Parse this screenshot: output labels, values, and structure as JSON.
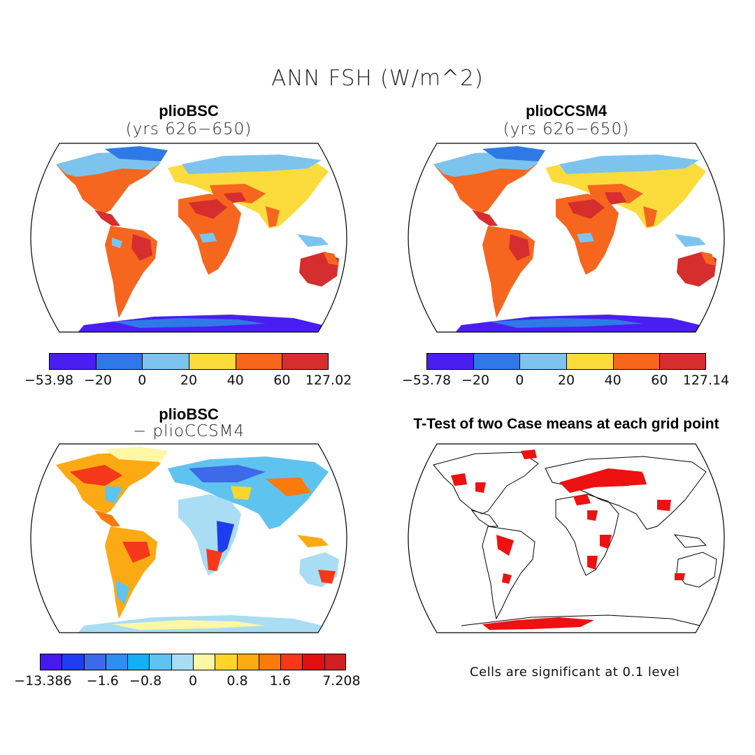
{
  "figure": {
    "title": "ANN FSH (W/m^2)"
  },
  "panels": [
    {
      "title": "plioBSC",
      "subtitle": "(yrs 626−650)",
      "colorbar": {
        "colors": [
          "#4a1ef0",
          "#2f79e6",
          "#7cc4ee",
          "#fbdc3c",
          "#f6661e",
          "#d62e2e"
        ],
        "labels": [
          "−53.98",
          "−20",
          "0",
          "20",
          "40",
          "60",
          "127.02"
        ]
      }
    },
    {
      "title": "plioCCSM4",
      "subtitle": "(yrs 626−650)",
      "colorbar": {
        "colors": [
          "#4a1ef0",
          "#2f79e6",
          "#7cc4ee",
          "#fbdc3c",
          "#f6661e",
          "#d62e2e"
        ],
        "labels": [
          "−53.78",
          "−20",
          "0",
          "20",
          "40",
          "60",
          "127.14"
        ]
      }
    },
    {
      "title": "plioBSC",
      "subtitle": "− plioCCSM4",
      "colorbar": {
        "colors": [
          "#4619ee",
          "#1f3df0",
          "#3d6ae8",
          "#2f8ff0",
          "#14b0f5",
          "#5fc3f0",
          "#a9ddf3",
          "#fdf7a6",
          "#fcd52b",
          "#fcaa14",
          "#fb7a0c",
          "#f6381a",
          "#e20f0f",
          "#d02020"
        ],
        "labels": [
          "−13.386",
          "−1.6",
          "−0.8",
          "0",
          "0.8",
          "1.6",
          "7.208"
        ]
      }
    },
    {
      "title": "T-Test of two Case means at each grid point",
      "note": "Cells are significant at 0.1 level"
    }
  ]
}
